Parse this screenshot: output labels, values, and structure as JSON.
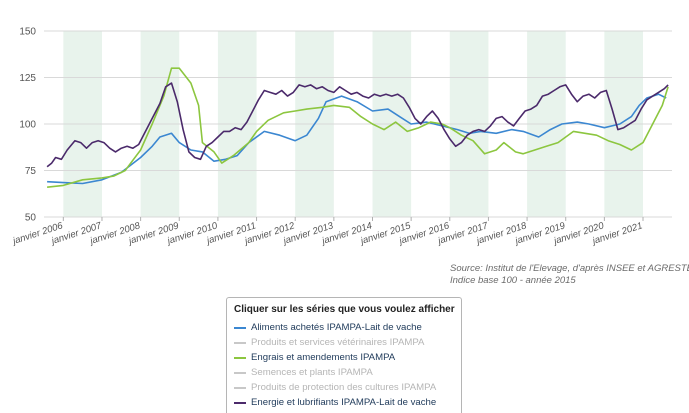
{
  "chart_data": {
    "type": "line",
    "ylim": [
      50,
      150
    ],
    "yticks": [
      50,
      75,
      100,
      125,
      150
    ],
    "x_range": [
      2005.5,
      2021.75
    ],
    "x_ticks": [
      "janvier 2006",
      "janvier 2007",
      "janvier 2008",
      "janvier 2009",
      "janvier 2010",
      "janvier 2011",
      "janvier 2012",
      "janvier 2013",
      "janvier 2014",
      "janvier 2015",
      "janvier 2016",
      "janvier 2017",
      "janvier 2018",
      "janvier 2019",
      "janvier 2020",
      "janvier 2021"
    ],
    "shaded_years": [
      2006,
      2008,
      2010,
      2012,
      2014,
      2016,
      2018,
      2020
    ],
    "grid": "horizontal",
    "series": [
      {
        "name": "Aliments achetés IPAMPA-Lait de vache",
        "color": "#3b87d1",
        "visible": true,
        "points": [
          [
            2005.58,
            69
          ],
          [
            2006.0,
            68.5
          ],
          [
            2006.5,
            68
          ],
          [
            2007.0,
            70
          ],
          [
            2007.5,
            74
          ],
          [
            2008.0,
            82
          ],
          [
            2008.3,
            88
          ],
          [
            2008.5,
            93
          ],
          [
            2008.8,
            95
          ],
          [
            2009.0,
            90
          ],
          [
            2009.3,
            86
          ],
          [
            2009.6,
            85
          ],
          [
            2009.9,
            80
          ],
          [
            2010.2,
            81
          ],
          [
            2010.5,
            83
          ],
          [
            2010.8,
            90
          ],
          [
            2011.2,
            96
          ],
          [
            2011.6,
            94
          ],
          [
            2012.0,
            91
          ],
          [
            2012.3,
            94
          ],
          [
            2012.6,
            103
          ],
          [
            2012.8,
            112
          ],
          [
            2013.2,
            115
          ],
          [
            2013.6,
            112
          ],
          [
            2014.0,
            107
          ],
          [
            2014.4,
            108
          ],
          [
            2014.7,
            104
          ],
          [
            2015.0,
            100
          ],
          [
            2015.4,
            101
          ],
          [
            2015.8,
            99
          ],
          [
            2016.2,
            97
          ],
          [
            2016.5,
            95
          ],
          [
            2016.8,
            96
          ],
          [
            2017.2,
            95
          ],
          [
            2017.6,
            97
          ],
          [
            2017.9,
            96
          ],
          [
            2018.3,
            93
          ],
          [
            2018.6,
            97
          ],
          [
            2018.9,
            100
          ],
          [
            2019.3,
            101
          ],
          [
            2019.6,
            100
          ],
          [
            2020.0,
            98
          ],
          [
            2020.4,
            100
          ],
          [
            2020.7,
            104
          ],
          [
            2020.9,
            110
          ],
          [
            2021.1,
            114
          ],
          [
            2021.4,
            116
          ],
          [
            2021.6,
            114
          ]
        ]
      },
      {
        "name": "Produits et services vétérinaires IPAMPA",
        "color": "#c8c8c8",
        "visible": false
      },
      {
        "name": "Engrais et amendements IPAMPA",
        "color": "#8cc63f",
        "visible": true,
        "points": [
          [
            2005.58,
            66
          ],
          [
            2006.0,
            67
          ],
          [
            2006.5,
            70
          ],
          [
            2007.0,
            71
          ],
          [
            2007.3,
            72
          ],
          [
            2007.6,
            75
          ],
          [
            2008.0,
            86
          ],
          [
            2008.3,
            100
          ],
          [
            2008.6,
            115
          ],
          [
            2008.8,
            130
          ],
          [
            2009.0,
            130
          ],
          [
            2009.3,
            122
          ],
          [
            2009.5,
            110
          ],
          [
            2009.6,
            90
          ],
          [
            2009.9,
            85
          ],
          [
            2010.1,
            79
          ],
          [
            2010.4,
            83
          ],
          [
            2010.8,
            90
          ],
          [
            2011.0,
            96
          ],
          [
            2011.3,
            102
          ],
          [
            2011.7,
            106
          ],
          [
            2012.0,
            107
          ],
          [
            2012.3,
            108
          ],
          [
            2012.7,
            109
          ],
          [
            2013.0,
            110
          ],
          [
            2013.4,
            109
          ],
          [
            2013.7,
            104
          ],
          [
            2014.0,
            100
          ],
          [
            2014.3,
            97
          ],
          [
            2014.6,
            101
          ],
          [
            2014.9,
            96
          ],
          [
            2015.2,
            98
          ],
          [
            2015.5,
            101
          ],
          [
            2015.8,
            100
          ],
          [
            2016.0,
            98
          ],
          [
            2016.3,
            94
          ],
          [
            2016.6,
            91
          ],
          [
            2016.9,
            84
          ],
          [
            2017.2,
            86
          ],
          [
            2017.4,
            90
          ],
          [
            2017.7,
            85
          ],
          [
            2017.9,
            84
          ],
          [
            2018.2,
            86
          ],
          [
            2018.5,
            88
          ],
          [
            2018.8,
            90
          ],
          [
            2019.2,
            96
          ],
          [
            2019.5,
            95
          ],
          [
            2019.8,
            94
          ],
          [
            2020.1,
            91
          ],
          [
            2020.4,
            89
          ],
          [
            2020.7,
            86
          ],
          [
            2021.0,
            90
          ],
          [
            2021.3,
            102
          ],
          [
            2021.5,
            110
          ],
          [
            2021.65,
            120
          ]
        ]
      },
      {
        "name": "Semences et plants IPAMPA",
        "color": "#c8c8c8",
        "visible": false
      },
      {
        "name": "Produits de protection des cultures IPAMPA",
        "color": "#c8c8c8",
        "visible": false
      },
      {
        "name": "Energie et lubrifiants IPAMPA-Lait de vache",
        "color": "#4b2a6b",
        "visible": true,
        "points": [
          [
            2005.58,
            77
          ],
          [
            2005.7,
            79
          ],
          [
            2005.8,
            82
          ],
          [
            2005.95,
            81
          ],
          [
            2006.1,
            86
          ],
          [
            2006.3,
            91
          ],
          [
            2006.45,
            90
          ],
          [
            2006.6,
            87
          ],
          [
            2006.75,
            90
          ],
          [
            2006.9,
            91
          ],
          [
            2007.05,
            90
          ],
          [
            2007.2,
            87
          ],
          [
            2007.35,
            85
          ],
          [
            2007.5,
            87
          ],
          [
            2007.65,
            88
          ],
          [
            2007.8,
            87
          ],
          [
            2007.95,
            89
          ],
          [
            2008.1,
            95
          ],
          [
            2008.3,
            103
          ],
          [
            2008.5,
            111
          ],
          [
            2008.65,
            120
          ],
          [
            2008.8,
            122
          ],
          [
            2008.95,
            112
          ],
          [
            2009.1,
            97
          ],
          [
            2009.25,
            85
          ],
          [
            2009.4,
            82
          ],
          [
            2009.55,
            81
          ],
          [
            2009.7,
            88
          ],
          [
            2009.85,
            90
          ],
          [
            2010.0,
            93
          ],
          [
            2010.15,
            96
          ],
          [
            2010.3,
            96
          ],
          [
            2010.45,
            98
          ],
          [
            2010.6,
            97
          ],
          [
            2010.75,
            101
          ],
          [
            2010.9,
            107
          ],
          [
            2011.05,
            113
          ],
          [
            2011.2,
            118
          ],
          [
            2011.35,
            117
          ],
          [
            2011.5,
            116
          ],
          [
            2011.65,
            118
          ],
          [
            2011.8,
            115
          ],
          [
            2011.95,
            117
          ],
          [
            2012.1,
            121
          ],
          [
            2012.25,
            120
          ],
          [
            2012.4,
            121
          ],
          [
            2012.55,
            119
          ],
          [
            2012.7,
            120
          ],
          [
            2012.85,
            118
          ],
          [
            2013.0,
            117
          ],
          [
            2013.15,
            120
          ],
          [
            2013.3,
            118
          ],
          [
            2013.45,
            116
          ],
          [
            2013.6,
            117
          ],
          [
            2013.75,
            115
          ],
          [
            2013.9,
            114
          ],
          [
            2014.05,
            116
          ],
          [
            2014.2,
            115
          ],
          [
            2014.35,
            116
          ],
          [
            2014.5,
            115
          ],
          [
            2014.65,
            116
          ],
          [
            2014.8,
            114
          ],
          [
            2014.95,
            109
          ],
          [
            2015.1,
            103
          ],
          [
            2015.25,
            100
          ],
          [
            2015.4,
            104
          ],
          [
            2015.55,
            107
          ],
          [
            2015.7,
            103
          ],
          [
            2015.85,
            97
          ],
          [
            2016.0,
            92
          ],
          [
            2016.15,
            88
          ],
          [
            2016.3,
            90
          ],
          [
            2016.45,
            94
          ],
          [
            2016.6,
            96
          ],
          [
            2016.75,
            97
          ],
          [
            2016.9,
            96
          ],
          [
            2017.05,
            99
          ],
          [
            2017.2,
            103
          ],
          [
            2017.35,
            104
          ],
          [
            2017.5,
            101
          ],
          [
            2017.65,
            99
          ],
          [
            2017.8,
            103
          ],
          [
            2017.95,
            107
          ],
          [
            2018.1,
            108
          ],
          [
            2018.25,
            110
          ],
          [
            2018.4,
            115
          ],
          [
            2018.55,
            116
          ],
          [
            2018.7,
            118
          ],
          [
            2018.85,
            120
          ],
          [
            2019.0,
            121
          ],
          [
            2019.15,
            116
          ],
          [
            2019.3,
            112
          ],
          [
            2019.45,
            115
          ],
          [
            2019.6,
            116
          ],
          [
            2019.75,
            114
          ],
          [
            2019.9,
            117
          ],
          [
            2020.05,
            118
          ],
          [
            2020.2,
            108
          ],
          [
            2020.35,
            97
          ],
          [
            2020.5,
            98
          ],
          [
            2020.65,
            100
          ],
          [
            2020.8,
            102
          ],
          [
            2020.95,
            108
          ],
          [
            2021.1,
            113
          ],
          [
            2021.25,
            115
          ],
          [
            2021.4,
            117
          ],
          [
            2021.55,
            119
          ],
          [
            2021.65,
            121
          ]
        ]
      }
    ]
  },
  "source_lines": [
    "Source: Institut de l'Elevage, d'après INSEE et AGRESTE",
    "Indice base 100 - année 2015"
  ],
  "legend": {
    "title": "Cliquer sur les séries que vous voulez afficher"
  }
}
